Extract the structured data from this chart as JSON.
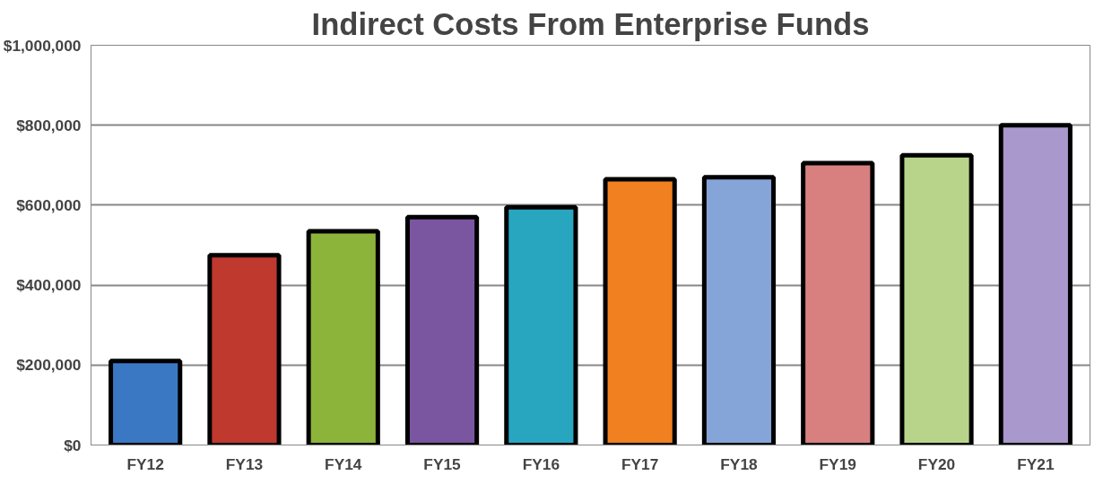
{
  "chart_data": {
    "type": "bar",
    "title": "Indirect Costs From Enterprise Funds",
    "categories": [
      "FY12",
      "FY13",
      "FY14",
      "FY15",
      "FY16",
      "FY17",
      "FY18",
      "FY19",
      "FY20",
      "FY21"
    ],
    "values": [
      210000,
      475000,
      535000,
      570000,
      595000,
      665000,
      670000,
      705000,
      725000,
      800000
    ],
    "colors": [
      "#3a78c4",
      "#c0392f",
      "#8db43a",
      "#7a55a0",
      "#28a6c0",
      "#f08020",
      "#85a4d8",
      "#d88080",
      "#b8d48a",
      "#a898cc"
    ],
    "ylim": [
      0,
      1000000
    ],
    "yticks": [
      {
        "value": 0,
        "label": "$0"
      },
      {
        "value": 200000,
        "label": "$200,000"
      },
      {
        "value": 400000,
        "label": "$400,000"
      },
      {
        "value": 600000,
        "label": "$600,000"
      },
      {
        "value": 800000,
        "label": "$800,000"
      },
      {
        "value": 1000000,
        "label": "$1,000,000"
      }
    ],
    "grid": "y"
  }
}
